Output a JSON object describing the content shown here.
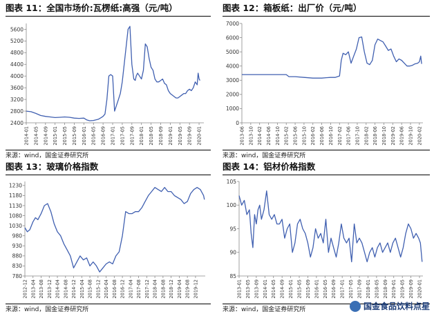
{
  "charts": [
    {
      "title": "图表 11：全国市场价:瓦楞纸:高强（元/吨）",
      "source": "来源：wind，国金证券研究所",
      "chart_data": {
        "type": "line",
        "color": "#3f5fb0",
        "ylim": [
          2400,
          5800
        ],
        "yticks": [
          2400,
          2800,
          3200,
          3600,
          4000,
          4400,
          4800,
          5200,
          5600
        ],
        "ytick_labels": [
          "2400",
          "2800",
          "3200",
          "3600",
          "4000",
          "4400",
          "4800",
          "5200",
          "5600"
        ],
        "xticks": [
          "2014-01",
          "2014-05",
          "2014-09",
          "2015-01",
          "2015-05",
          "2015-09",
          "2016-01",
          "2016-05",
          "2016-09",
          "2017-01",
          "2017-05",
          "2017-09",
          "2018-01",
          "2018-05",
          "2018-09",
          "2019-01",
          "2019-05",
          "2019-09",
          "2020-01"
        ],
        "xlim": [
          0,
          18.5
        ],
        "series": [
          {
            "x": [
              0,
              0.5,
              1,
              1.5,
              2,
              2.5,
              3,
              3.5,
              4,
              4.5,
              5,
              5.5,
              6,
              6.3,
              6.6,
              7,
              7.5,
              7.8,
              8.0,
              8.2,
              8.4,
              8.6,
              8.8,
              9.0,
              9.2,
              9.4,
              9.6,
              9.8,
              10.0,
              10.2,
              10.4,
              10.6,
              10.8,
              11.0,
              11.2,
              11.35,
              11.45,
              11.6,
              11.8,
              12.0,
              12.2,
              12.4,
              12.6,
              12.8,
              13.0,
              13.2,
              13.4,
              13.6,
              13.8,
              14.0,
              14.2,
              14.4,
              14.6,
              14.8,
              15.0,
              15.2,
              15.4,
              15.6,
              15.8,
              16.0,
              16.2,
              16.4,
              16.6,
              16.8,
              17.0,
              17.2,
              17.4,
              17.6,
              17.8,
              17.9,
              18.0,
              18.1
            ],
            "y": [
              2800,
              2780,
              2720,
              2650,
              2620,
              2600,
              2580,
              2590,
              2600,
              2590,
              2560,
              2550,
              2560,
              2500,
              2470,
              2480,
              2520,
              2580,
              2620,
              2700,
              3200,
              4000,
              4050,
              4000,
              2800,
              3000,
              3200,
              3400,
              3800,
              4400,
              5000,
              5600,
              5700,
              4400,
              3900,
              3850,
              4000,
              4100,
              4000,
              3900,
              4200,
              5100,
              5000,
              4600,
              4300,
              4200,
              3900,
              3800,
              3800,
              3850,
              3900,
              3750,
              3700,
              3500,
              3400,
              3350,
              3300,
              3250,
              3250,
              3300,
              3350,
              3400,
              3400,
              3500,
              3550,
              3500,
              3600,
              3800,
              3700,
              4100,
              3900,
              3850
            ]
          }
        ]
      }
    },
    {
      "title": "图表 12：箱板纸：出厂价（元/吨）",
      "source": "来源：wind，国金证券研究所",
      "chart_data": {
        "type": "line",
        "color": "#3f5fb0",
        "ylim": [
          0,
          7000
        ],
        "yticks": [
          0,
          1000,
          2000,
          3000,
          4000,
          5000,
          6000,
          7000
        ],
        "ytick_labels": [
          "0",
          "1000",
          "2000",
          "3000",
          "4000",
          "5000",
          "6000",
          "7000"
        ],
        "xticks": [
          "2013-06",
          "2013-10",
          "2014-02",
          "2014-06",
          "2014-10",
          "2015-02",
          "2015-06",
          "2015-10",
          "2016-02",
          "2016-06",
          "2016-10",
          "2017-02",
          "2017-06",
          "2017-10",
          "2018-02",
          "2018-06",
          "2018-10",
          "2019-02",
          "2019-06",
          "2019-10",
          "2020-02"
        ],
        "xlim": [
          0,
          20.4
        ],
        "series": [
          {
            "x": [
              0,
              1,
              2,
              3,
              4,
              5,
              5.3,
              6,
              7,
              8,
              8.5,
              9,
              9.5,
              10,
              10.5,
              11,
              11.2,
              11.4,
              11.7,
              12,
              12.3,
              12.6,
              12.9,
              13.2,
              13.5,
              13.8,
              14.1,
              14.4,
              14.7,
              15.0,
              15.3,
              15.6,
              15.9,
              16.2,
              16.5,
              16.8,
              17.1,
              17.4,
              17.7,
              18.0,
              18.3,
              18.6,
              18.9,
              19.2,
              19.5,
              19.8,
              20.0,
              20.15,
              20.25
            ],
            "y": [
              3400,
              3400,
              3400,
              3400,
              3400,
              3400,
              3250,
              3250,
              3200,
              3150,
              3150,
              3150,
              3180,
              3200,
              3200,
              3300,
              4400,
              4900,
              4800,
              5000,
              4200,
              4700,
              5200,
              6000,
              6050,
              5000,
              4200,
              4100,
              4400,
              5500,
              5900,
              5800,
              5700,
              5400,
              5100,
              5200,
              4700,
              4300,
              4500,
              4400,
              4200,
              4000,
              4000,
              4050,
              4150,
              4200,
              4300,
              4700,
              4150
            ]
          }
        ]
      }
    },
    {
      "title": "图表 13：玻璃价格指数",
      "source": "来源：wind，国金证券研究所",
      "chart_data": {
        "type": "line",
        "color": "#3f5fb0",
        "ylim": [
          780,
          1250
        ],
        "yticks": [
          780,
          830,
          880,
          930,
          980,
          1030,
          1080,
          1130,
          1180,
          1230
        ],
        "ytick_labels": [
          "780",
          "830",
          "880",
          "930",
          "980",
          "1030",
          "1080",
          "1130",
          "1180",
          "1230"
        ],
        "xticks": [
          "2012-12",
          "2013-04",
          "2013-08",
          "2013-12",
          "2014-04",
          "2014-08",
          "2014-12",
          "2015-04",
          "2015-08",
          "2015-12",
          "2016-04",
          "2016-08",
          "2016-12",
          "2017-04",
          "2017-08",
          "2017-12",
          "2018-04",
          "2018-08",
          "2018-12",
          "2019-04",
          "2019-08",
          "2019-12"
        ],
        "xlim": [
          0,
          22.2
        ],
        "series": [
          {
            "x": [
              0,
              0.3,
              0.6,
              1.0,
              1.3,
              1.6,
              2.0,
              2.4,
              2.8,
              3.2,
              3.6,
              4.0,
              4.4,
              4.8,
              5.2,
              5.6,
              6.0,
              6.4,
              6.8,
              7.2,
              7.6,
              8.0,
              8.4,
              8.8,
              9.2,
              9.6,
              10.0,
              10.4,
              10.8,
              11.2,
              11.6,
              12.0,
              12.4,
              12.8,
              13.2,
              13.6,
              14.0,
              14.4,
              14.8,
              15.2,
              15.6,
              16.0,
              16.4,
              16.8,
              17.2,
              17.6,
              18.0,
              18.4,
              18.8,
              19.2,
              19.6,
              20.0,
              20.4,
              20.8,
              21.2,
              21.6,
              22.0,
              22.1
            ],
            "y": [
              1020,
              1000,
              1010,
              1050,
              1070,
              1060,
              1090,
              1130,
              1140,
              1100,
              1040,
              1000,
              980,
              940,
              910,
              880,
              820,
              850,
              880,
              860,
              870,
              830,
              850,
              830,
              800,
              820,
              840,
              850,
              840,
              880,
              900,
              980,
              1100,
              1090,
              1090,
              1100,
              1100,
              1120,
              1150,
              1180,
              1200,
              1220,
              1210,
              1200,
              1220,
              1200,
              1200,
              1180,
              1170,
              1160,
              1140,
              1150,
              1190,
              1210,
              1220,
              1210,
              1180,
              1160
            ]
          }
        ]
      }
    },
    {
      "title": "图表 14：铝材价格指数",
      "source": "来源：wind，国金证券研究所",
      "chart_data": {
        "type": "line",
        "color": "#3f5fb0",
        "ylim": [
          85,
          105
        ],
        "yticks": [
          85,
          90,
          95,
          100,
          105
        ],
        "ytick_labels": [
          "85",
          "90",
          "95",
          "100",
          "105"
        ],
        "xticks": [
          "2013-01",
          "2013-05",
          "2013-09",
          "2014-01",
          "2014-05",
          "2014-09",
          "2015-01",
          "2015-05",
          "2015-09",
          "2016-01",
          "2016-05",
          "2016-09",
          "2017-01",
          "2017-05",
          "2017-09",
          "2018-01",
          "2018-05",
          "2018-09",
          "2019-01",
          "2019-05",
          "2019-09",
          "2020-01"
        ],
        "xlim": [
          0,
          21.4
        ],
        "series": [
          {
            "x": [
              0,
              0.3,
              0.6,
              0.9,
              1.2,
              1.4,
              1.6,
              1.8,
              2.0,
              2.2,
              2.4,
              2.6,
              2.9,
              3.2,
              3.5,
              3.8,
              4.1,
              4.4,
              4.7,
              5.0,
              5.3,
              5.6,
              5.9,
              6.2,
              6.5,
              6.8,
              7.1,
              7.4,
              7.7,
              8.0,
              8.3,
              8.6,
              8.9,
              9.2,
              9.5,
              9.8,
              10.1,
              10.4,
              10.7,
              11.0,
              11.3,
              11.6,
              11.9,
              12.2,
              12.5,
              12.8,
              13.1,
              13.4,
              13.7,
              14.0,
              14.3,
              14.6,
              14.9,
              15.2,
              15.5,
              15.8,
              16.1,
              16.4,
              16.7,
              17.0,
              17.3,
              17.6,
              17.9,
              18.2,
              18.5,
              18.8,
              19.1,
              19.4,
              19.7,
              20.0,
              20.3,
              20.6,
              20.9,
              21.1,
              21.3
            ],
            "y": [
              102,
              100,
              101,
              98,
              99,
              94,
              91,
              98,
              96,
              99,
              100,
              97,
              99,
              103,
              98,
              97,
              98,
              96,
              96,
              97,
              93,
              95,
              96,
              90,
              92,
              96,
              97,
              95,
              94,
              92,
              89,
              91,
              95,
              93,
              94,
              92,
              97,
              90,
              93,
              91,
              89,
              92,
              96,
              93,
              92,
              93,
              88,
              96,
              92,
              93,
              92,
              90,
              88,
              90,
              91,
              89,
              91,
              92,
              90,
              91,
              92,
              90,
              92,
              93,
              91,
              89,
              91,
              94,
              96,
              95,
              93,
              94,
              93,
              92,
              88
            ]
          }
        ]
      }
    }
  ],
  "watermark": {
    "text": "国金食品饮料点星"
  }
}
